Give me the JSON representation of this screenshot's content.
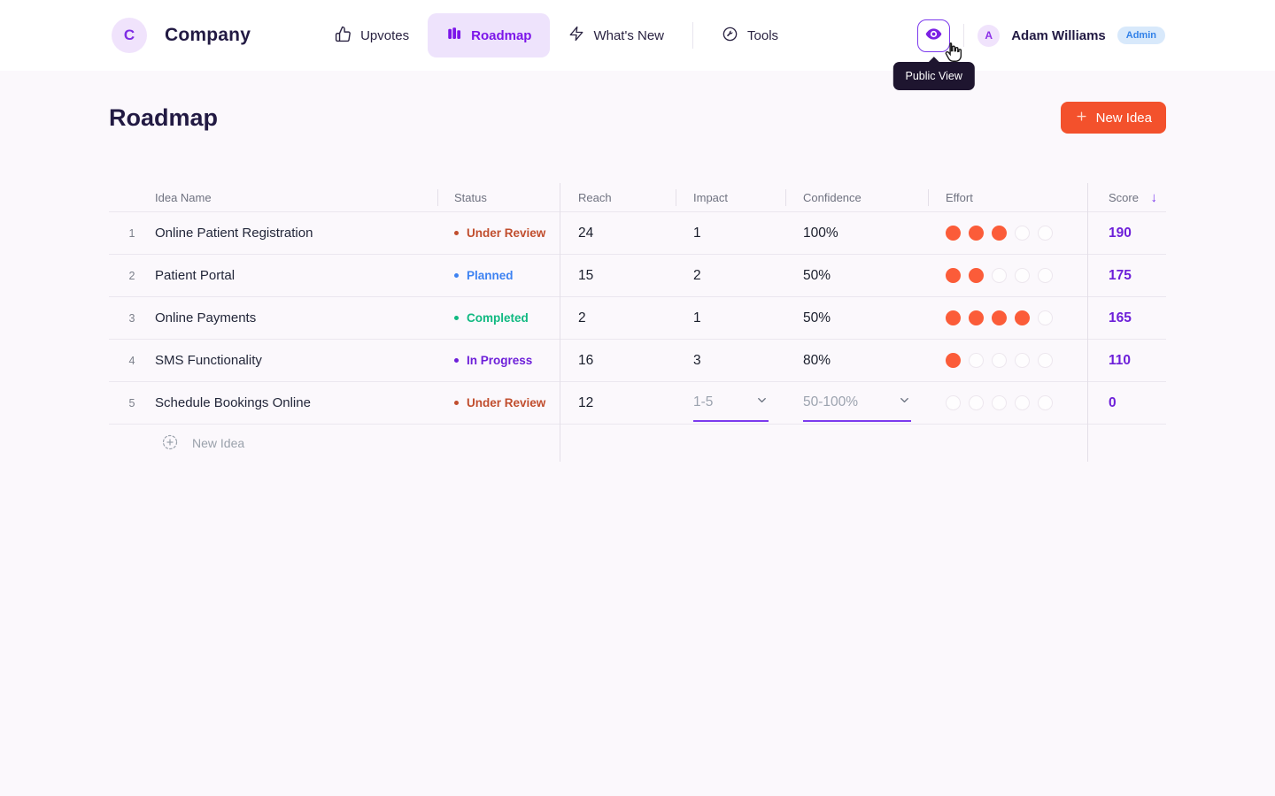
{
  "header": {
    "company": {
      "initial": "C",
      "name": "Company"
    },
    "nav": {
      "upvotes": "Upvotes",
      "roadmap": "Roadmap",
      "whats_new": "What's New",
      "tools": "Tools"
    },
    "public_view_tooltip": "Public View",
    "user": {
      "initial": "A",
      "name": "Adam Williams",
      "badge": "Admin"
    }
  },
  "page": {
    "title": "Roadmap",
    "new_idea_button": "New Idea"
  },
  "table": {
    "columns": {
      "idea_name": "Idea Name",
      "status": "Status",
      "reach": "Reach",
      "impact": "Impact",
      "confidence": "Confidence",
      "effort": "Effort",
      "score": "Score"
    },
    "sort": {
      "column": "Score",
      "direction": "desc",
      "icon": "↓"
    },
    "effort_max": 5,
    "rows": [
      {
        "num": "1",
        "name": "Online Patient Registration",
        "status": "Under Review",
        "status_key": "under-review",
        "reach": "24",
        "impact": "1",
        "confidence": "100%",
        "effort": 3,
        "score": "190"
      },
      {
        "num": "2",
        "name": "Patient Portal",
        "status": "Planned",
        "status_key": "planned",
        "reach": "15",
        "impact": "2",
        "confidence": "50%",
        "effort": 2,
        "score": "175"
      },
      {
        "num": "3",
        "name": "Online Payments",
        "status": "Completed",
        "status_key": "completed",
        "reach": "2",
        "impact": "1",
        "confidence": "50%",
        "effort": 4,
        "score": "165"
      },
      {
        "num": "4",
        "name": "SMS Functionality",
        "status": "In Progress",
        "status_key": "in-progress",
        "reach": "16",
        "impact": "3",
        "confidence": "80%",
        "effort": 1,
        "score": "110"
      },
      {
        "num": "5",
        "name": "Schedule Bookings Online",
        "status": "Under Review",
        "status_key": "under-review",
        "reach": "12",
        "impact_placeholder": "1-5",
        "confidence_placeholder": "50-100%",
        "effort": 0,
        "score": "0"
      }
    ],
    "add_row_label": "New Idea"
  },
  "colors": {
    "accent_purple": "#7c3aed",
    "score_purple": "#6d1fd9",
    "primary_orange": "#f3512c",
    "effort_orange": "#fb5c39",
    "status_under_review": "#c14e2e",
    "status_planned": "#3d82f2",
    "status_completed": "#10b981",
    "status_in_progress": "#6d1fd9",
    "tooltip_bg": "#1e152f",
    "admin_badge_bg": "#d8e9fb",
    "admin_badge_text": "#3181e8"
  }
}
